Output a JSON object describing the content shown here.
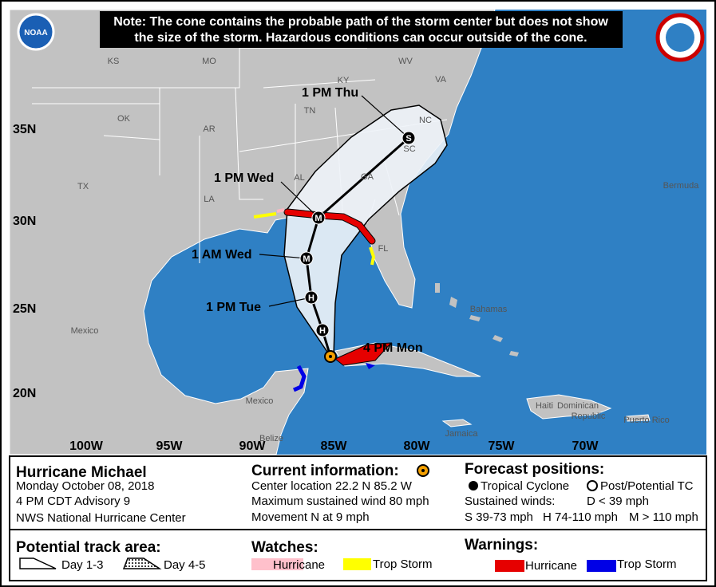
{
  "note": [
    "Note: The cone contains the probable path of the storm center but does not show",
    "the size of the storm. Hazardous conditions can occur outside of the cone."
  ],
  "logos": {
    "noaa": "NOAA"
  },
  "map": {
    "state_labels": [
      "KS",
      "MO",
      "KY",
      "WV",
      "VA",
      "OK",
      "AR",
      "TN",
      "NC",
      "SC",
      "TX",
      "LA",
      "AL",
      "GA",
      "FL"
    ],
    "place_labels": [
      "Bermuda",
      "Mexico",
      "Bahamas",
      "Mexico",
      "Belize",
      "Jamaica",
      "Haiti",
      "Dominican",
      "Republic",
      "Puerto Rico"
    ],
    "lat_labels": [
      "35N",
      "30N",
      "25N",
      "20N"
    ],
    "lon_labels": [
      "100W",
      "95W",
      "90W",
      "85W",
      "80W",
      "75W",
      "70W"
    ],
    "forecast_labels": [
      "1 PM Thu",
      "1 PM Wed",
      "1 AM Wed",
      "1 PM Tue",
      "4 PM Mon"
    ],
    "track_points": [
      "S",
      "M",
      "M",
      "H",
      "H"
    ]
  },
  "legend": {
    "storm": {
      "name": "Hurricane Michael",
      "date": "Monday October 08, 2018",
      "advisory": "4 PM CDT Advisory 9",
      "center": "NWS National Hurricane Center"
    },
    "current": {
      "title": "Current information:",
      "location": "Center location 22.2 N 85.2 W",
      "wind": "Maximum sustained wind 80 mph",
      "movement": "Movement N at 9 mph"
    },
    "forecast": {
      "title": "Forecast positions:",
      "tropical": "Tropical Cyclone",
      "post": "Post/Potential TC",
      "winds": "Sustained winds:",
      "d": "D < 39 mph",
      "s": "S 39-73 mph",
      "h": "H 74-110 mph",
      "m": "M > 110 mph"
    },
    "track_area": {
      "title": "Potential track area:",
      "day13": "Day 1-3",
      "day45": "Day 4-5"
    },
    "watches": {
      "title": "Watches:",
      "hurricane": "Hurricane",
      "storm": "Trop Storm"
    },
    "warnings": {
      "title": "Warnings:",
      "hurricane": "Hurricane",
      "storm": "Trop Storm"
    }
  }
}
